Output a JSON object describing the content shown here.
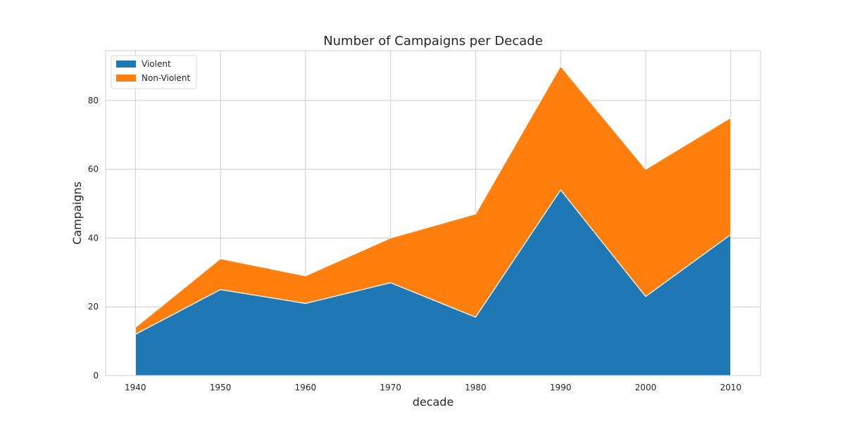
{
  "chart_data": {
    "type": "area",
    "stacked": true,
    "title": "Number of Campaigns per Decade",
    "xlabel": "decade",
    "ylabel": "Campaigns",
    "x": [
      1940,
      1950,
      1960,
      1970,
      1980,
      1990,
      2000,
      2010
    ],
    "x_tick_labels": [
      "1940",
      "1950",
      "1960",
      "1970",
      "1980",
      "1990",
      "2000",
      "2010"
    ],
    "y_ticks": [
      0,
      20,
      40,
      60,
      80
    ],
    "y_tick_labels": [
      "0",
      "20",
      "40",
      "60",
      "80"
    ],
    "xlim": [
      1936.5,
      2013.5
    ],
    "ylim": [
      0,
      94.5
    ],
    "grid": true,
    "legend_position": "top-left",
    "series": [
      {
        "name": "Violent",
        "color": "#1f77b4",
        "values": [
          12,
          25,
          21,
          27,
          17,
          54,
          23,
          41
        ]
      },
      {
        "name": "Non-Violent",
        "color": "#ff7f0e",
        "values": [
          2,
          9,
          8,
          13,
          30,
          36,
          37,
          34
        ]
      }
    ]
  }
}
